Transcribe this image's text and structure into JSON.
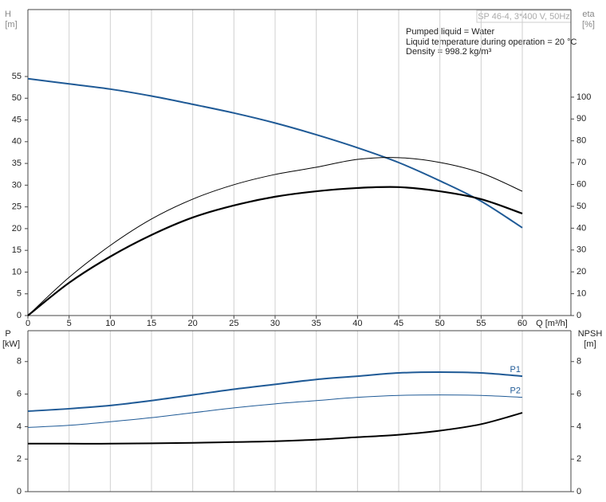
{
  "chart_data": [
    {
      "type": "line",
      "title": "SP 46-4, 3*400 V, 50Hz",
      "annotations": [
        "Pumped liquid = Water",
        "Liquid temperature during operation = 20 °C",
        "Density = 998.2 kg/m³"
      ],
      "ylabel": "H",
      "yunit": "[m]",
      "y2label": "eta",
      "y2unit": "[%]",
      "xlabel": "Q [m³/h]",
      "x": [
        0,
        5,
        10,
        15,
        20,
        25,
        30,
        35,
        40,
        45,
        50,
        55,
        60
      ],
      "xlim": [
        0,
        65.9
      ],
      "xticks": [
        0,
        5,
        10,
        15,
        20,
        25,
        30,
        35,
        40,
        45,
        50,
        55,
        60
      ],
      "ylim": [
        0,
        70.4
      ],
      "yticks": [
        0,
        5,
        10,
        15,
        20,
        25,
        30,
        35,
        40,
        45,
        50,
        55
      ],
      "y2lim": [
        0,
        140.1
      ],
      "y2ticks": [
        0,
        10,
        20,
        30,
        40,
        50,
        60,
        70,
        80,
        90,
        100
      ],
      "grid": "x",
      "series": [
        {
          "color": "#1f5a96",
          "width": 2,
          "values": [
            54.5,
            53.3,
            52.1,
            50.5,
            48.6,
            46.6,
            44.3,
            41.6,
            38.6,
            35.2,
            31.0,
            26.3,
            20.2
          ]
        },
        {
          "color": "#000000",
          "width": 1,
          "axis": "y2",
          "values": [
            0,
            17.5,
            32.1,
            44.2,
            53.3,
            59.9,
            64.6,
            67.9,
            71.5,
            72.3,
            70.1,
            65.3,
            56.9
          ]
        },
        {
          "color": "#000000",
          "width": 2.2,
          "axis": "y2",
          "values": [
            0,
            15,
            27,
            36.9,
            44.9,
            50.4,
            54.4,
            56.9,
            58.4,
            58.8,
            56.9,
            53.3,
            46.7
          ]
        }
      ]
    },
    {
      "type": "line",
      "ylabel": "P",
      "yunit": "[kW]",
      "y2label": "NPSH",
      "y2unit": "[m]",
      "x": [
        0,
        5,
        10,
        15,
        20,
        25,
        30,
        35,
        40,
        45,
        50,
        55,
        60
      ],
      "xlim": [
        0,
        65.9
      ],
      "ylim": [
        0,
        9.9
      ],
      "yticks": [
        0,
        2,
        4,
        6,
        8
      ],
      "y2lim": [
        0,
        9.9
      ],
      "y2ticks": [
        0,
        2,
        4,
        6,
        8
      ],
      "series": [
        {
          "name": "P1",
          "color": "#1f5a96",
          "width": 2,
          "values": [
            4.95,
            5.1,
            5.3,
            5.6,
            5.95,
            6.3,
            6.6,
            6.9,
            7.1,
            7.3,
            7.35,
            7.3,
            7.1
          ]
        },
        {
          "name": "P2",
          "color": "#1f5a96",
          "width": 1,
          "values": [
            3.95,
            4.08,
            4.3,
            4.55,
            4.85,
            5.15,
            5.4,
            5.6,
            5.8,
            5.92,
            5.95,
            5.92,
            5.8
          ]
        },
        {
          "color": "#000000",
          "width": 2,
          "axis": "y2",
          "values": [
            2.95,
            2.95,
            2.95,
            2.97,
            3.0,
            3.05,
            3.1,
            3.2,
            3.35,
            3.5,
            3.75,
            4.15,
            4.85
          ]
        }
      ]
    }
  ]
}
